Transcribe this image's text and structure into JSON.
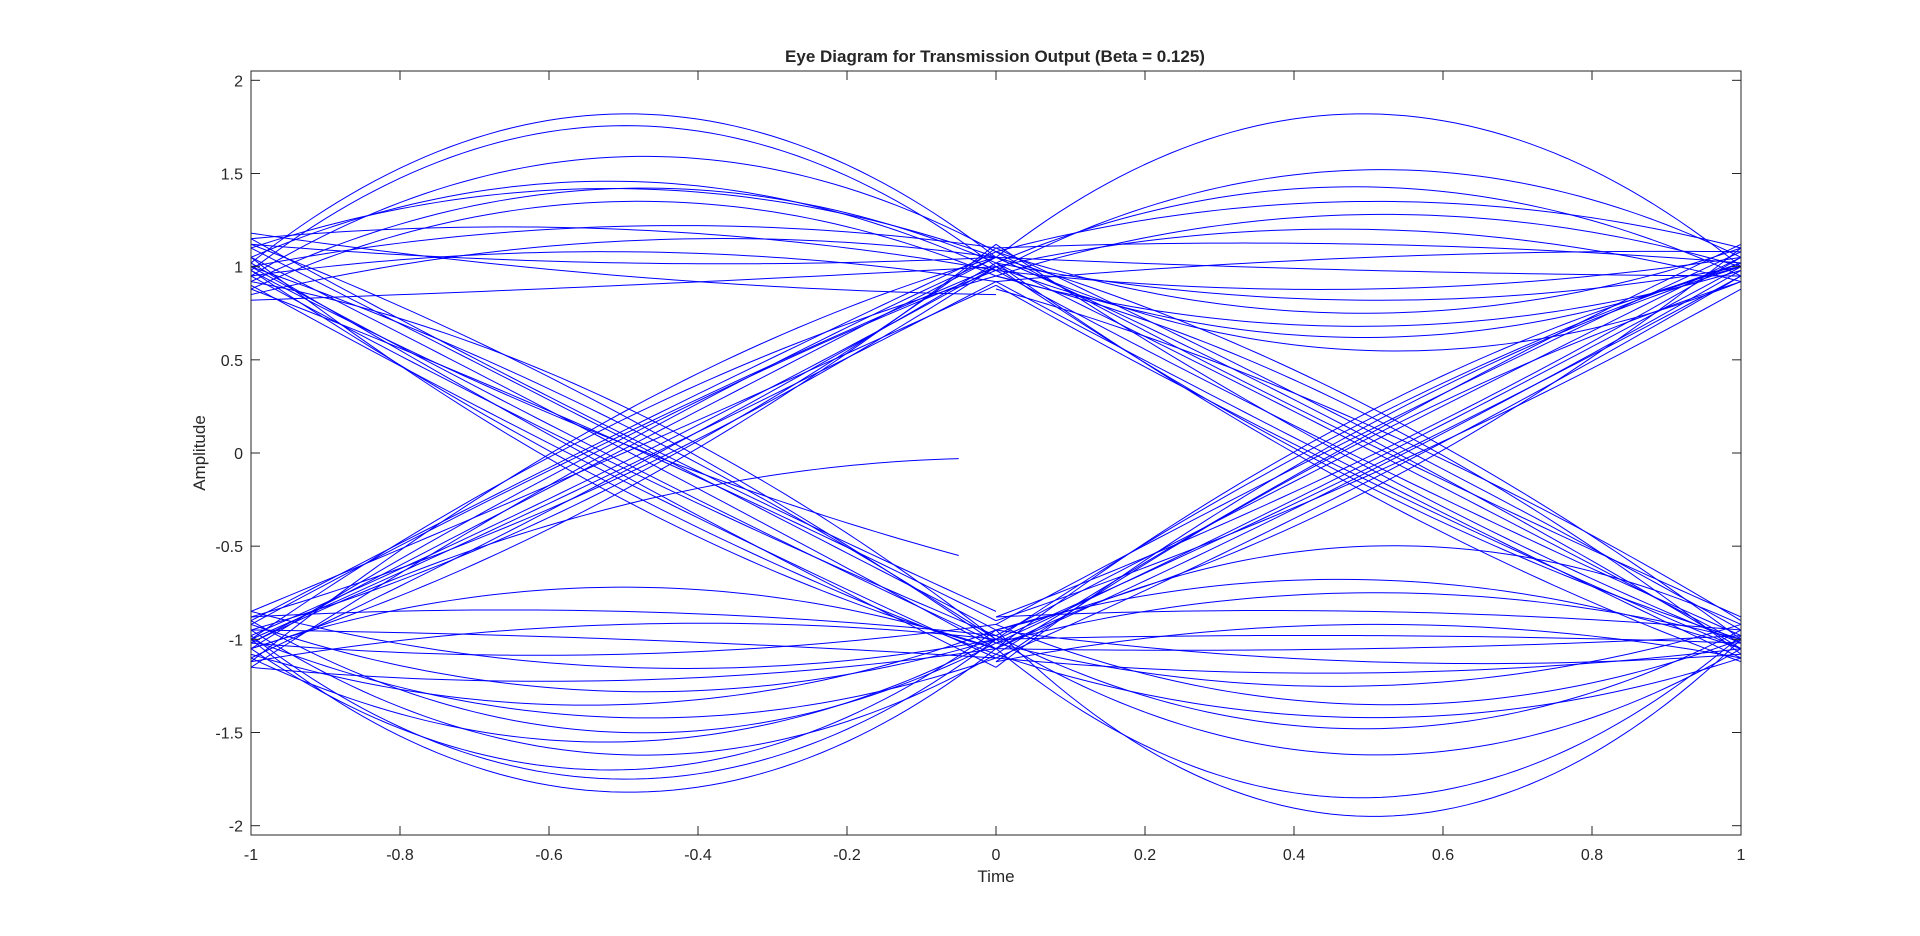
{
  "chart_data": {
    "type": "line",
    "title": "Eye Diagram for Transmission Output (Beta = 0.125)",
    "xlabel": "Time",
    "ylabel": "Amplitude",
    "xlim": [
      -1,
      1
    ],
    "ylim": [
      -2.05,
      2.05
    ],
    "x_ticks": [
      -1,
      -0.8,
      -0.6,
      -0.4,
      -0.2,
      0,
      0.2,
      0.4,
      0.6,
      0.8,
      1
    ],
    "x_tick_labels": [
      "-1",
      "-0.8",
      "-0.6",
      "-0.4",
      "-0.2",
      "0",
      "0.2",
      "0.4",
      "0.6",
      "0.8",
      "1"
    ],
    "y_ticks": [
      2,
      1.5,
      1,
      0.5,
      0,
      -0.5,
      -1,
      -1.5,
      -2
    ],
    "y_tick_labels": [
      "2",
      "1.5",
      "1",
      "0.5",
      "0",
      "-0.5",
      "-1",
      "-1.5",
      "-2"
    ],
    "grid": false,
    "line_color": "#0000ff",
    "series": [
      {
        "x": [
          -1,
          -0.5,
          0
        ],
        "y": [
          1.02,
          1.82,
          1.05
        ]
      },
      {
        "x": [
          -1,
          -0.45,
          0
        ],
        "y": [
          0.98,
          1.75,
          1.0
        ]
      },
      {
        "x": [
          -1,
          -0.4,
          0
        ],
        "y": [
          0.95,
          1.58,
          1.08
        ]
      },
      {
        "x": [
          -1,
          -0.45,
          0
        ],
        "y": [
          1.05,
          1.45,
          0.98
        ]
      },
      {
        "x": [
          -1,
          -0.5,
          0
        ],
        "y": [
          0.92,
          1.42,
          1.02
        ]
      },
      {
        "x": [
          -1,
          -0.4,
          0
        ],
        "y": [
          1.1,
          1.4,
          1.05
        ]
      },
      {
        "x": [
          -1,
          -0.5,
          0
        ],
        "y": [
          0.88,
          1.35,
          0.95
        ]
      },
      {
        "x": [
          -1,
          -0.45,
          0
        ],
        "y": [
          1.0,
          1.22,
          1.1
        ]
      },
      {
        "x": [
          -1,
          -0.5,
          0
        ],
        "y": [
          1.15,
          1.2,
          0.98
        ]
      },
      {
        "x": [
          -1,
          -0.4,
          0
        ],
        "y": [
          0.85,
          1.15,
          1.05
        ]
      },
      {
        "x": [
          -1,
          -0.5,
          0
        ],
        "y": [
          0.95,
          1.08,
          0.92
        ]
      },
      {
        "x": [
          -1,
          -0.5,
          0
        ],
        "y": [
          1.12,
          1.02,
          1.05
        ]
      },
      {
        "x": [
          -1,
          -0.5,
          0
        ],
        "y": [
          0.82,
          0.9,
          1.0
        ]
      },
      {
        "x": [
          -1,
          -0.5,
          0
        ],
        "y": [
          1.18,
          0.95,
          0.85
        ]
      },
      {
        "x": [
          -1,
          -0.5,
          0
        ],
        "y": [
          1.0,
          -0.05,
          -1.02
        ]
      },
      {
        "x": [
          -1,
          -0.5,
          0
        ],
        "y": [
          0.95,
          -0.08,
          -0.98
        ]
      },
      {
        "x": [
          -1,
          -0.5,
          0
        ],
        "y": [
          1.05,
          0.02,
          -1.05
        ]
      },
      {
        "x": [
          -1,
          -0.5,
          0
        ],
        "y": [
          0.9,
          -0.15,
          -1.1
        ]
      },
      {
        "x": [
          -1,
          -0.5,
          0
        ],
        "y": [
          1.1,
          0.08,
          -0.95
        ]
      },
      {
        "x": [
          -1,
          -0.5,
          0
        ],
        "y": [
          1.0,
          0.15,
          -1.0
        ]
      },
      {
        "x": [
          -1,
          -0.5,
          0
        ],
        "y": [
          0.98,
          -0.2,
          -1.08
        ]
      },
      {
        "x": [
          -1,
          -0.5,
          0
        ],
        "y": [
          1.12,
          0.2,
          -1.02
        ]
      },
      {
        "x": [
          -1,
          -0.5,
          0
        ],
        "y": [
          0.88,
          0.05,
          -0.9
        ]
      },
      {
        "x": [
          -1,
          -0.5,
          0
        ],
        "y": [
          1.02,
          -0.12,
          -1.15
        ]
      },
      {
        "x": [
          -1,
          -0.5,
          0
        ],
        "y": [
          1.15,
          0.1,
          -0.85
        ]
      },
      {
        "x": [
          -1,
          -0.5,
          0
        ],
        "y": [
          0.92,
          0.25,
          -1.0
        ]
      },
      {
        "x": [
          -1,
          -0.5,
          -0.05
        ],
        "y": [
          0.98,
          0.05,
          -0.55
        ]
      },
      {
        "x": [
          -1,
          -0.5,
          0
        ],
        "y": [
          1.05,
          -0.25,
          -1.05
        ]
      },
      {
        "x": [
          -1,
          -0.5,
          0
        ],
        "y": [
          -1.02,
          0.02,
          1.05
        ]
      },
      {
        "x": [
          -1,
          -0.5,
          0
        ],
        "y": [
          -0.98,
          -0.05,
          1.0
        ]
      },
      {
        "x": [
          -1,
          -0.5,
          0
        ],
        "y": [
          -1.05,
          0.08,
          0.98
        ]
      },
      {
        "x": [
          -1,
          -0.5,
          0
        ],
        "y": [
          -0.9,
          0.12,
          1.08
        ]
      },
      {
        "x": [
          -1,
          -0.5,
          0
        ],
        "y": [
          -1.1,
          -0.1,
          1.02
        ]
      },
      {
        "x": [
          -1,
          -0.5,
          0
        ],
        "y": [
          -1.0,
          0.18,
          0.95
        ]
      },
      {
        "x": [
          -1,
          -0.5,
          0
        ],
        "y": [
          -0.95,
          -0.15,
          1.1
        ]
      },
      {
        "x": [
          -1,
          -0.5,
          0
        ],
        "y": [
          -1.12,
          0.22,
          1.05
        ]
      },
      {
        "x": [
          -1,
          -0.5,
          0
        ],
        "y": [
          -0.85,
          0.0,
          0.9
        ]
      },
      {
        "x": [
          -1,
          -0.5,
          0
        ],
        "y": [
          -1.05,
          -0.2,
          1.12
        ]
      },
      {
        "x": [
          -1,
          -0.5,
          0
        ],
        "y": [
          -0.92,
          0.1,
          1.0
        ]
      },
      {
        "x": [
          -1,
          -0.5,
          0
        ],
        "y": [
          -1.0,
          -0.08,
          0.92
        ]
      },
      {
        "x": [
          -1,
          -0.5,
          0
        ],
        "y": [
          -1.15,
          0.05,
          1.05
        ]
      },
      {
        "x": [
          -1,
          -0.5,
          0
        ],
        "y": [
          -0.88,
          -0.12,
          1.0
        ]
      },
      {
        "x": [
          -1,
          -0.65,
          -0.05
        ],
        "y": [
          -1.02,
          -0.45,
          -0.03
        ]
      },
      {
        "x": [
          -1,
          -0.5,
          0
        ],
        "y": [
          -1.0,
          -1.82,
          -1.05
        ]
      },
      {
        "x": [
          -1,
          -0.5,
          0
        ],
        "y": [
          -0.98,
          -1.75,
          -1.0
        ]
      },
      {
        "x": [
          -1,
          -0.5,
          0
        ],
        "y": [
          -1.05,
          -1.7,
          -0.95
        ]
      },
      {
        "x": [
          -1,
          -0.45,
          0
        ],
        "y": [
          -0.95,
          -1.62,
          -1.08
        ]
      },
      {
        "x": [
          -1,
          -0.5,
          0
        ],
        "y": [
          -1.1,
          -1.55,
          -1.0
        ]
      },
      {
        "x": [
          -1,
          -0.5,
          0
        ],
        "y": [
          -0.9,
          -1.5,
          -1.02
        ]
      },
      {
        "x": [
          -1,
          -0.5,
          0
        ],
        "y": [
          -1.0,
          -1.42,
          -1.1
        ]
      },
      {
        "x": [
          -1,
          -0.5,
          0
        ],
        "y": [
          -1.08,
          -1.35,
          -0.95
        ]
      },
      {
        "x": [
          -1,
          -0.5,
          0
        ],
        "y": [
          -0.92,
          -1.28,
          -1.0
        ]
      },
      {
        "x": [
          -1,
          -0.5,
          0
        ],
        "y": [
          -1.15,
          -1.22,
          -1.05
        ]
      },
      {
        "x": [
          -1,
          -0.5,
          0
        ],
        "y": [
          -0.85,
          -1.15,
          -1.0
        ]
      },
      {
        "x": [
          -1,
          -0.5,
          0
        ],
        "y": [
          -1.02,
          -1.08,
          -0.92
        ]
      },
      {
        "x": [
          -1,
          -0.5,
          0
        ],
        "y": [
          -0.95,
          -1.0,
          -1.1
        ]
      },
      {
        "x": [
          -1,
          -0.5,
          0
        ],
        "y": [
          -1.12,
          -0.92,
          -1.0
        ]
      },
      {
        "x": [
          -1,
          -0.5,
          0
        ],
        "y": [
          -0.88,
          -0.85,
          -0.98
        ]
      },
      {
        "x": [
          -1,
          -0.5,
          0
        ],
        "y": [
          -1.05,
          -0.72,
          -1.05
        ]
      },
      {
        "x": [
          0,
          0.5,
          1
        ],
        "y": [
          1.05,
          1.82,
          1.0
        ]
      },
      {
        "x": [
          0,
          0.5,
          1
        ],
        "y": [
          0.98,
          1.52,
          1.05
        ]
      },
      {
        "x": [
          0,
          0.55,
          1
        ],
        "y": [
          1.02,
          1.42,
          0.95
        ]
      },
      {
        "x": [
          0,
          0.5,
          1
        ],
        "y": [
          1.08,
          1.35,
          1.1
        ]
      },
      {
        "x": [
          0,
          0.5,
          1
        ],
        "y": [
          0.95,
          1.28,
          1.0
        ]
      },
      {
        "x": [
          0,
          0.5,
          1
        ],
        "y": [
          1.0,
          1.2,
          0.92
        ]
      },
      {
        "x": [
          0,
          0.5,
          1
        ],
        "y": [
          1.1,
          1.12,
          1.02
        ]
      },
      {
        "x": [
          0,
          0.5,
          1
        ],
        "y": [
          0.92,
          1.05,
          1.08
        ]
      },
      {
        "x": [
          0,
          0.5,
          1
        ],
        "y": [
          1.05,
          0.98,
          0.95
        ]
      },
      {
        "x": [
          0,
          0.5,
          1
        ],
        "y": [
          0.98,
          0.88,
          1.05
        ]
      },
      {
        "x": [
          0,
          0.5,
          1
        ],
        "y": [
          1.02,
          0.82,
          1.0
        ]
      },
      {
        "x": [
          0,
          0.5,
          1
        ],
        "y": [
          1.08,
          0.75,
          1.1
        ]
      },
      {
        "x": [
          0,
          0.5,
          1
        ],
        "y": [
          0.95,
          0.68,
          0.98
        ]
      },
      {
        "x": [
          0,
          0.5,
          1
        ],
        "y": [
          1.0,
          0.62,
          1.02
        ]
      },
      {
        "x": [
          0,
          0.5,
          1
        ],
        "y": [
          1.05,
          0.55,
          0.92
        ]
      },
      {
        "x": [
          0,
          0.5,
          1
        ],
        "y": [
          1.02,
          0.02,
          -1.02
        ]
      },
      {
        "x": [
          0,
          0.5,
          1
        ],
        "y": [
          0.98,
          -0.05,
          -0.98
        ]
      },
      {
        "x": [
          0,
          0.5,
          1
        ],
        "y": [
          1.05,
          0.08,
          -1.05
        ]
      },
      {
        "x": [
          0,
          0.5,
          1
        ],
        "y": [
          0.92,
          -0.12,
          -1.1
        ]
      },
      {
        "x": [
          0,
          0.5,
          1
        ],
        "y": [
          1.1,
          0.12,
          -0.95
        ]
      },
      {
        "x": [
          0,
          0.5,
          1
        ],
        "y": [
          1.0,
          -0.18,
          -1.0
        ]
      },
      {
        "x": [
          0,
          0.5,
          1
        ],
        "y": [
          0.95,
          0.2,
          -1.08
        ]
      },
      {
        "x": [
          0,
          0.5,
          1
        ],
        "y": [
          1.12,
          -0.08,
          -1.02
        ]
      },
      {
        "x": [
          0,
          0.5,
          1
        ],
        "y": [
          0.88,
          0.15,
          -0.9
        ]
      },
      {
        "x": [
          0,
          0.5,
          1
        ],
        "y": [
          1.02,
          -0.22,
          -1.12
        ]
      },
      {
        "x": [
          0,
          0.5,
          1
        ],
        "y": [
          1.08,
          0.05,
          -0.88
        ]
      },
      {
        "x": [
          0,
          0.5,
          1
        ],
        "y": [
          0.9,
          -0.15,
          -1.05
        ]
      },
      {
        "x": [
          0,
          0.5,
          1
        ],
        "y": [
          1.05,
          0.25,
          -1.0
        ]
      },
      {
        "x": [
          0,
          0.5,
          1
        ],
        "y": [
          -1.02,
          -0.05,
          1.0
        ]
      },
      {
        "x": [
          0,
          0.5,
          1
        ],
        "y": [
          -0.98,
          0.05,
          1.05
        ]
      },
      {
        "x": [
          0,
          0.5,
          1
        ],
        "y": [
          -1.05,
          -0.1,
          0.98
        ]
      },
      {
        "x": [
          0,
          0.5,
          1
        ],
        "y": [
          -0.92,
          0.12,
          1.08
        ]
      },
      {
        "x": [
          0,
          0.5,
          1
        ],
        "y": [
          -1.1,
          -0.15,
          0.95
        ]
      },
      {
        "x": [
          0,
          0.5,
          1
        ],
        "y": [
          -1.0,
          0.18,
          1.02
        ]
      },
      {
        "x": [
          0,
          0.5,
          1
        ],
        "y": [
          -0.95,
          -0.2,
          1.1
        ]
      },
      {
        "x": [
          0,
          0.5,
          1
        ],
        "y": [
          -1.12,
          0.08,
          0.92
        ]
      },
      {
        "x": [
          0,
          0.5,
          1
        ],
        "y": [
          -0.88,
          -0.02,
          1.05
        ]
      },
      {
        "x": [
          0,
          0.5,
          1
        ],
        "y": [
          -1.05,
          0.22,
          1.0
        ]
      },
      {
        "x": [
          0,
          0.5,
          1
        ],
        "y": [
          -0.9,
          -0.12,
          0.88
        ]
      },
      {
        "x": [
          0,
          0.5,
          1
        ],
        "y": [
          -1.08,
          0.1,
          1.12
        ]
      },
      {
        "x": [
          0,
          0.5,
          1
        ],
        "y": [
          -1.0,
          -0.08,
          0.95
        ]
      },
      {
        "x": [
          0,
          0.5,
          1
        ],
        "y": [
          -1.15,
          0.15,
          1.0
        ]
      },
      {
        "x": [
          0,
          0.5,
          1
        ],
        "y": [
          -0.95,
          -1.95,
          -1.0
        ]
      },
      {
        "x": [
          0,
          0.5,
          1
        ],
        "y": [
          -1.05,
          -1.85,
          -0.98
        ]
      },
      {
        "x": [
          0,
          0.5,
          1
        ],
        "y": [
          -1.0,
          -1.62,
          -1.05
        ]
      },
      {
        "x": [
          0,
          0.5,
          1
        ],
        "y": [
          -0.98,
          -1.48,
          -0.95
        ]
      },
      {
        "x": [
          0,
          0.5,
          1
        ],
        "y": [
          -1.08,
          -1.42,
          -1.1
        ]
      },
      {
        "x": [
          0,
          0.5,
          1
        ],
        "y": [
          -0.92,
          -1.35,
          -1.0
        ]
      },
      {
        "x": [
          0,
          0.5,
          1
        ],
        "y": [
          -1.02,
          -1.25,
          -0.92
        ]
      },
      {
        "x": [
          0,
          0.5,
          1
        ],
        "y": [
          -1.1,
          -1.18,
          -1.05
        ]
      },
      {
        "x": [
          0,
          0.5,
          1
        ],
        "y": [
          -0.95,
          -1.12,
          -1.08
        ]
      },
      {
        "x": [
          0,
          0.5,
          1
        ],
        "y": [
          -1.05,
          -1.05,
          -0.98
        ]
      },
      {
        "x": [
          0,
          0.5,
          1
        ],
        "y": [
          -1.0,
          -0.98,
          -1.02
        ]
      },
      {
        "x": [
          0,
          0.5,
          1
        ],
        "y": [
          -1.12,
          -0.92,
          -1.1
        ]
      },
      {
        "x": [
          0,
          0.5,
          1
        ],
        "y": [
          -0.88,
          -0.85,
          -0.95
        ]
      },
      {
        "x": [
          0,
          0.5,
          1
        ],
        "y": [
          -1.02,
          -0.75,
          -1.0
        ]
      },
      {
        "x": [
          0,
          0.5,
          1
        ],
        "y": [
          -0.95,
          -0.68,
          -1.05
        ]
      },
      {
        "x": [
          0,
          0.5,
          1
        ],
        "y": [
          -1.05,
          -0.5,
          -0.92
        ]
      }
    ]
  }
}
